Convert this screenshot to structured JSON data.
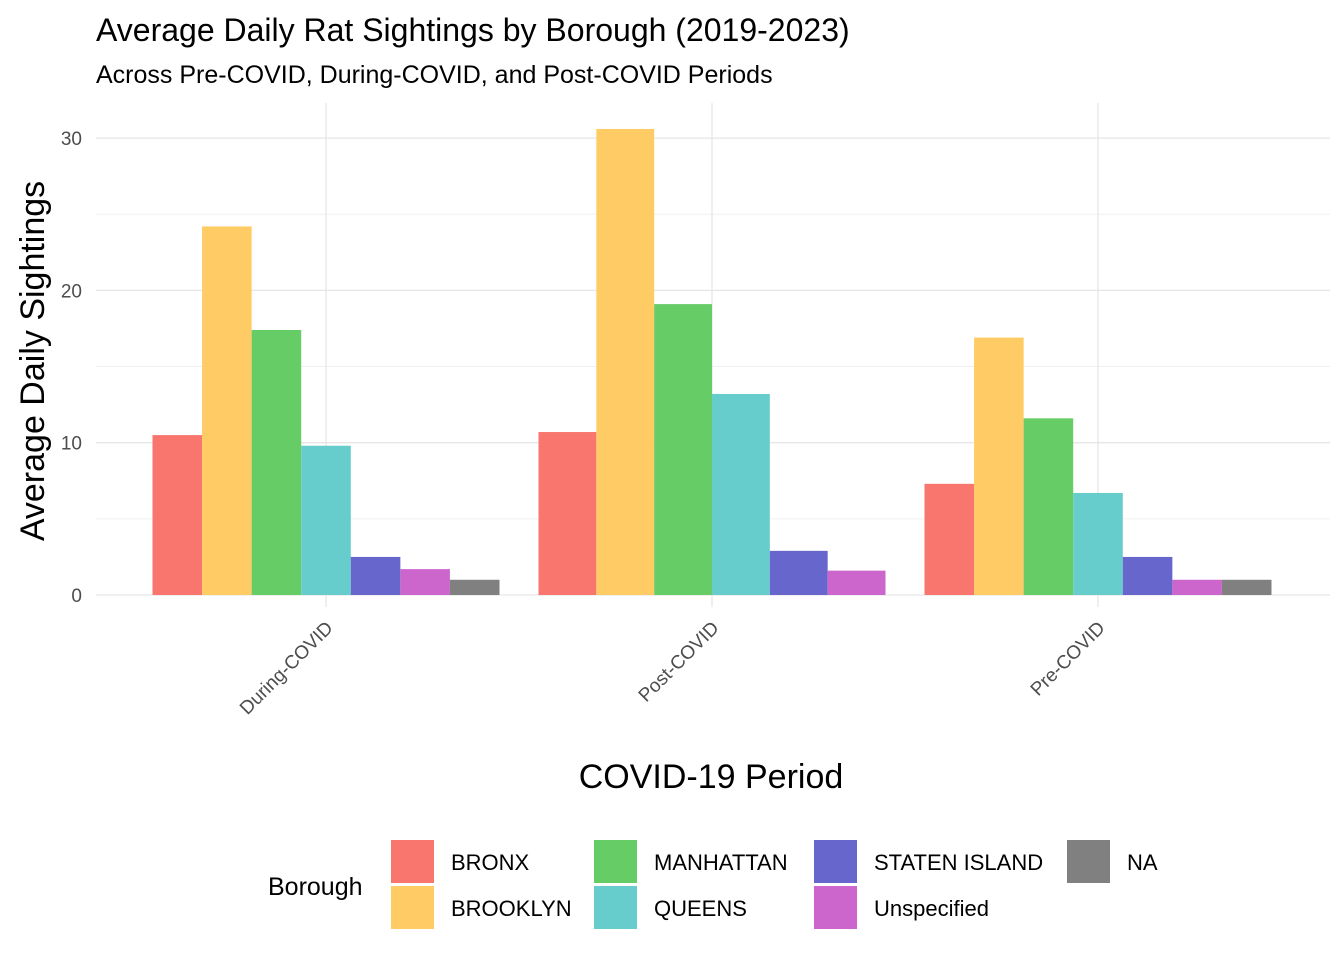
{
  "chart_data": {
    "type": "bar",
    "title": "Average Daily Rat Sightings by Borough (2019-2023)",
    "subtitle": "Across Pre-COVID, During-COVID, and Post-COVID Periods",
    "xlabel": "COVID-19 Period",
    "ylabel": "Average Daily Sightings",
    "categories": [
      "During-COVID",
      "Post-COVID",
      "Pre-COVID"
    ],
    "ylim": [
      0,
      32.3
    ],
    "yticks": [
      0,
      10,
      20,
      30
    ],
    "grid": true,
    "legend": {
      "title": "Borough",
      "position": "bottom"
    },
    "series": [
      {
        "name": "BRONX",
        "color": "#F8766D",
        "values": [
          10.5,
          10.7,
          7.3
        ]
      },
      {
        "name": "BROOKLYN",
        "color": "#FFCB64",
        "values": [
          24.2,
          30.6,
          16.9
        ]
      },
      {
        "name": "MANHATTAN",
        "color": "#66CC66",
        "values": [
          17.4,
          19.1,
          11.6
        ]
      },
      {
        "name": "QUEENS",
        "color": "#66CCCC",
        "values": [
          9.8,
          13.2,
          6.7
        ]
      },
      {
        "name": "STATEN ISLAND",
        "color": "#6666CC",
        "values": [
          2.5,
          2.9,
          2.5
        ]
      },
      {
        "name": "Unspecified",
        "color": "#CC66CC",
        "values": [
          1.7,
          1.6,
          1.0
        ]
      },
      {
        "name": "NA",
        "color": "#808080",
        "values": [
          1.0,
          null,
          1.0
        ]
      }
    ]
  }
}
